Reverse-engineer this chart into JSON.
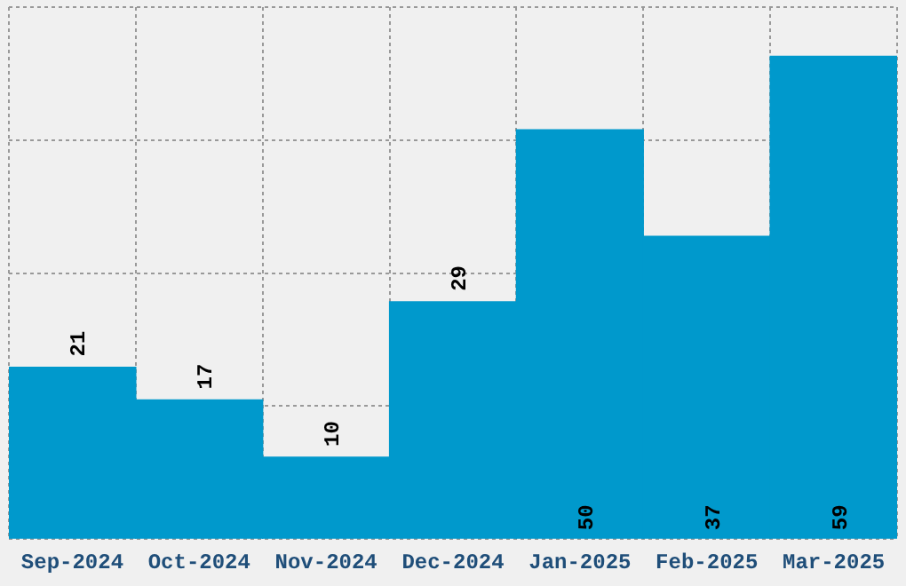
{
  "chart_data": {
    "type": "bar",
    "categories": [
      "Sep-2024",
      "Oct-2024",
      "Nov-2024",
      "Dec-2024",
      "Jan-2025",
      "Feb-2025",
      "Mar-2025"
    ],
    "values": [
      21,
      17,
      10,
      29,
      50,
      37,
      59
    ],
    "color": "#0099cc",
    "ylim": [
      0,
      65
    ],
    "yticks": [
      {
        "value": 0,
        "label": null
      },
      {
        "value": 16.25,
        "label": null
      },
      {
        "value": 32.5,
        "label": null
      },
      {
        "value": 48.75,
        "label": null
      },
      {
        "value": 65,
        "label": null
      }
    ],
    "grid": true,
    "data_labels": true,
    "tick_labels": "x"
  }
}
